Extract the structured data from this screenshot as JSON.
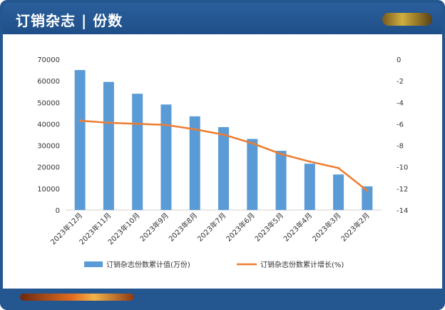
{
  "header": {
    "title": "订销杂志 | 份数"
  },
  "chart_data": {
    "type": "bar",
    "categories": [
      "2023年12月",
      "2023年11月",
      "2023年10月",
      "2023年9月",
      "2023年8月",
      "2023年7月",
      "2023年6月",
      "2023年5月",
      "2023年4月",
      "2023年3月",
      "2023年2月"
    ],
    "series": [
      {
        "name": "订销杂志份数累计值(万份)",
        "type": "bar",
        "axis": "left",
        "color": "#5b9bd5",
        "values": [
          65000,
          59500,
          54000,
          49000,
          43500,
          38500,
          33000,
          27500,
          21500,
          16500,
          11000
        ]
      },
      {
        "name": "订销杂志份数累计增长(%)",
        "type": "line",
        "axis": "right",
        "color": "#ed7d31",
        "values": [
          -5.7,
          -5.9,
          -6.0,
          -6.1,
          -6.5,
          -7.0,
          -7.8,
          -8.8,
          -9.5,
          -10.1,
          -12.2
        ]
      }
    ],
    "y_left": {
      "min": 0,
      "max": 70000,
      "ticks": [
        0,
        10000,
        20000,
        30000,
        40000,
        50000,
        60000,
        70000
      ]
    },
    "y_right": {
      "min": -14,
      "max": 0,
      "ticks": [
        0,
        -2,
        -4,
        -6,
        -8,
        -10,
        -12,
        -14
      ]
    },
    "legend": "bottom",
    "grid": false
  }
}
